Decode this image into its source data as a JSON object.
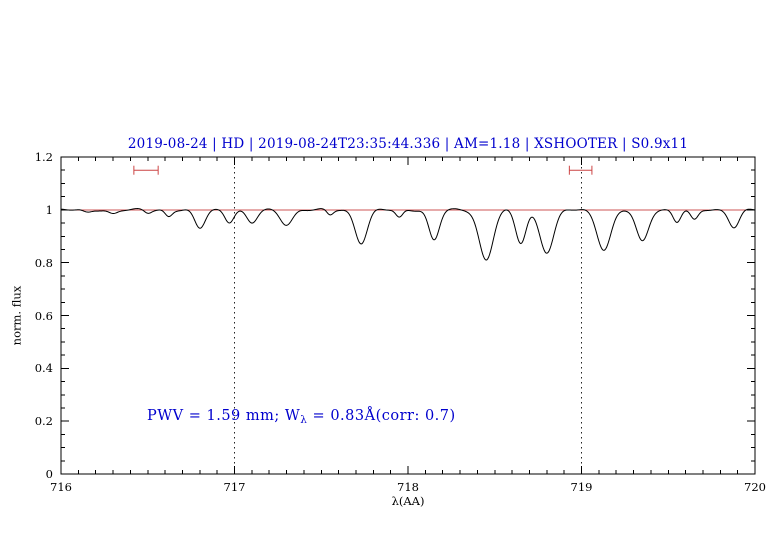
{
  "chart_data": {
    "type": "line",
    "title": "2019-08-24 | HD | 2019-08-24T23:35:44.336 | AM=1.18 | XSHOOTER | S0.9x11",
    "xlabel": "λ(AA)",
    "ylabel": "norm. flux",
    "xlim": [
      716,
      720
    ],
    "ylim": [
      0,
      1.2
    ],
    "x_ticks": [
      716,
      717,
      718,
      719,
      720
    ],
    "x_tick_labels": [
      "716",
      "717",
      "718",
      "719",
      "720"
    ],
    "x_minor_step": 0.1,
    "y_ticks": [
      0,
      0.2,
      0.4,
      0.6,
      0.8,
      1,
      1.2
    ],
    "y_tick_labels": [
      "0",
      "0.2",
      "0.4",
      "0.6",
      "0.8",
      "1",
      "1.2"
    ],
    "y_minor_step": 0.05,
    "grid": false,
    "reference_line_y": 1.0,
    "dotted_vlines": [
      717,
      719
    ],
    "error_brackets": [
      {
        "x1": 716.42,
        "x2": 716.56,
        "y": 1.15
      },
      {
        "x1": 718.93,
        "x2": 719.06,
        "y": 1.15
      }
    ],
    "annotation": {
      "prefix": "PWV = 1.59 mm; W",
      "sub": "λ",
      "suffix": " = 0.83Å(corr: 0.7)"
    },
    "spectrum_model": {
      "continuum": 1.0,
      "sample_step": 0.005,
      "absorption_lines": [
        [
          716.15,
          0.012,
          0.025
        ],
        [
          716.3,
          0.015,
          0.025
        ],
        [
          716.5,
          0.012,
          0.02
        ],
        [
          716.62,
          0.025,
          0.02
        ],
        [
          716.8,
          0.07,
          0.03
        ],
        [
          716.97,
          0.045,
          0.025
        ],
        [
          717.1,
          0.05,
          0.03
        ],
        [
          717.3,
          0.055,
          0.035
        ],
        [
          717.55,
          0.02,
          0.018
        ],
        [
          717.73,
          0.125,
          0.035
        ],
        [
          717.95,
          0.03,
          0.02
        ],
        [
          718.15,
          0.115,
          0.03
        ],
        [
          718.45,
          0.19,
          0.04
        ],
        [
          718.65,
          0.125,
          0.03
        ],
        [
          718.8,
          0.16,
          0.04
        ],
        [
          719.13,
          0.15,
          0.04
        ],
        [
          719.35,
          0.12,
          0.035
        ],
        [
          719.55,
          0.045,
          0.022
        ],
        [
          719.65,
          0.04,
          0.022
        ],
        [
          719.88,
          0.065,
          0.03
        ]
      ]
    },
    "colors": {
      "spectrum": "#000000",
      "reference_line": "#cc5555",
      "brackets": "#cc4444",
      "title": "#0000cd",
      "annotation": "#0000cd",
      "axes": "#000000",
      "dotted_lines": "#222222"
    }
  }
}
